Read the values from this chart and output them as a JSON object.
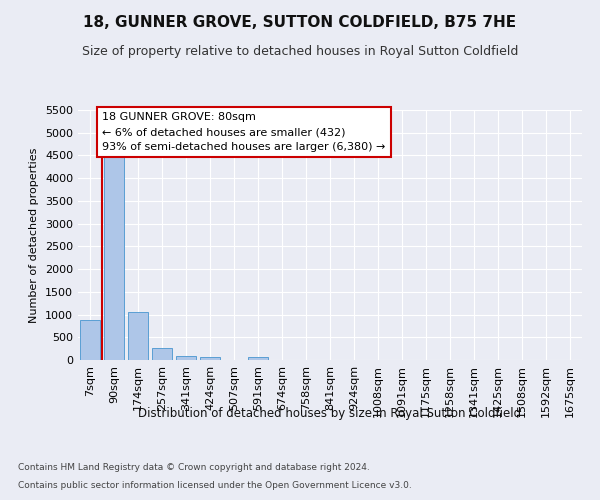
{
  "title": "18, GUNNER GROVE, SUTTON COLDFIELD, B75 7HE",
  "subtitle": "Size of property relative to detached houses in Royal Sutton Coldfield",
  "xlabel": "Distribution of detached houses by size in Royal Sutton Coldfield",
  "ylabel": "Number of detached properties",
  "footnote1": "Contains HM Land Registry data © Crown copyright and database right 2024.",
  "footnote2": "Contains public sector information licensed under the Open Government Licence v3.0.",
  "bar_labels": [
    "7sqm",
    "90sqm",
    "174sqm",
    "257sqm",
    "341sqm",
    "424sqm",
    "507sqm",
    "591sqm",
    "674sqm",
    "758sqm",
    "841sqm",
    "924sqm",
    "1008sqm",
    "1091sqm",
    "1175sqm",
    "1258sqm",
    "1341sqm",
    "1425sqm",
    "1508sqm",
    "1592sqm",
    "1675sqm"
  ],
  "bar_values": [
    880,
    4550,
    1060,
    275,
    85,
    75,
    0,
    60,
    0,
    0,
    0,
    0,
    0,
    0,
    0,
    0,
    0,
    0,
    0,
    0,
    0
  ],
  "bar_color": "#aec6e8",
  "bar_edge_color": "#5a9fd4",
  "annotation_title": "18 GUNNER GROVE: 80sqm",
  "annotation_line1": "← 6% of detached houses are smaller (432)",
  "annotation_line2": "93% of semi-detached houses are larger (6,380) →",
  "annotation_box_color": "#ffffff",
  "annotation_border_color": "#cc0000",
  "red_line_color": "#cc0000",
  "ylim": [
    0,
    5500
  ],
  "yticks": [
    0,
    500,
    1000,
    1500,
    2000,
    2500,
    3000,
    3500,
    4000,
    4500,
    5000,
    5500
  ],
  "bg_color": "#eaecf4",
  "plot_bg_color": "#eaecf4",
  "grid_color": "#ffffff",
  "title_fontsize": 11,
  "subtitle_fontsize": 9,
  "ylabel_fontsize": 8,
  "xlabel_fontsize": 8.5,
  "tick_fontsize": 8,
  "annot_fontsize": 8,
  "footnote_fontsize": 6.5
}
